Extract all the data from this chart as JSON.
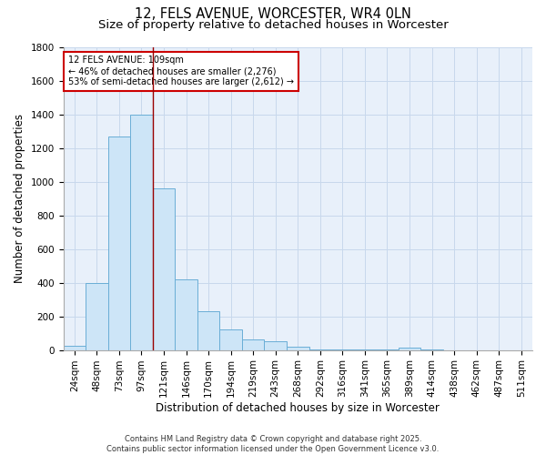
{
  "title1": "12, FELS AVENUE, WORCESTER, WR4 0LN",
  "title2": "Size of property relative to detached houses in Worcester",
  "xlabel": "Distribution of detached houses by size in Worcester",
  "ylabel": "Number of detached properties",
  "bar_labels": [
    "24sqm",
    "48sqm",
    "73sqm",
    "97sqm",
    "121sqm",
    "146sqm",
    "170sqm",
    "194sqm",
    "219sqm",
    "243sqm",
    "268sqm",
    "292sqm",
    "316sqm",
    "341sqm",
    "365sqm",
    "389sqm",
    "414sqm",
    "438sqm",
    "462sqm",
    "487sqm",
    "511sqm"
  ],
  "bar_values": [
    25,
    400,
    1270,
    1400,
    960,
    420,
    230,
    120,
    65,
    50,
    18,
    5,
    2,
    1,
    1,
    12,
    1,
    0,
    0,
    0,
    0
  ],
  "bar_color": "#cde5f7",
  "bar_edge_color": "#6aaed6",
  "vline_color": "#990000",
  "vline_x_idx": 3.5,
  "annotation_text": "12 FELS AVENUE: 109sqm\n← 46% of detached houses are smaller (2,276)\n53% of semi-detached houses are larger (2,612) →",
  "annotation_box_color": "white",
  "annotation_box_edge_color": "#cc0000",
  "ylim": [
    0,
    1800
  ],
  "yticks": [
    0,
    200,
    400,
    600,
    800,
    1000,
    1200,
    1400,
    1600,
    1800
  ],
  "grid_color": "#c8d8ec",
  "bg_color": "#e8f0fa",
  "footer_text": "Contains HM Land Registry data © Crown copyright and database right 2025.\nContains public sector information licensed under the Open Government Licence v3.0.",
  "title_fontsize": 10.5,
  "subtitle_fontsize": 9.5,
  "axis_label_fontsize": 8.5,
  "tick_fontsize": 7.5,
  "annotation_fontsize": 7.0,
  "footer_fontsize": 6.0
}
